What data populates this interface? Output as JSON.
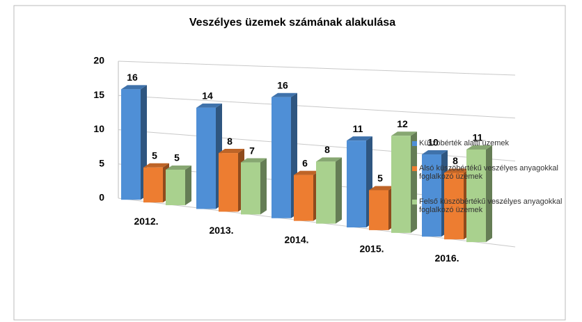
{
  "chart_data": {
    "type": "bar3d",
    "title": "Veszélyes üzemek számának alakulása",
    "categories": [
      "2012.",
      "2013.",
      "2014.",
      "2015.",
      "2016."
    ],
    "series": [
      {
        "name": "Küszöbérték alatti üzemek",
        "color": "#4f8fd6",
        "values": [
          16,
          14,
          16,
          11,
          10
        ]
      },
      {
        "name": "Alsó küszöbértékű veszélyes anyagokkal foglalkozó üzemek",
        "color": "#ed7d31",
        "values": [
          5,
          8,
          6,
          5,
          8
        ]
      },
      {
        "name": "Felső küszöbértékű veszélyes anyagokkal foglalkozó üzemek",
        "color": "#a9d18e",
        "values": [
          5,
          7,
          8,
          12,
          11
        ]
      }
    ],
    "ylim": [
      0,
      20
    ],
    "yticks": [
      0,
      5,
      10,
      15,
      20
    ],
    "grid": true,
    "legend": "right"
  }
}
